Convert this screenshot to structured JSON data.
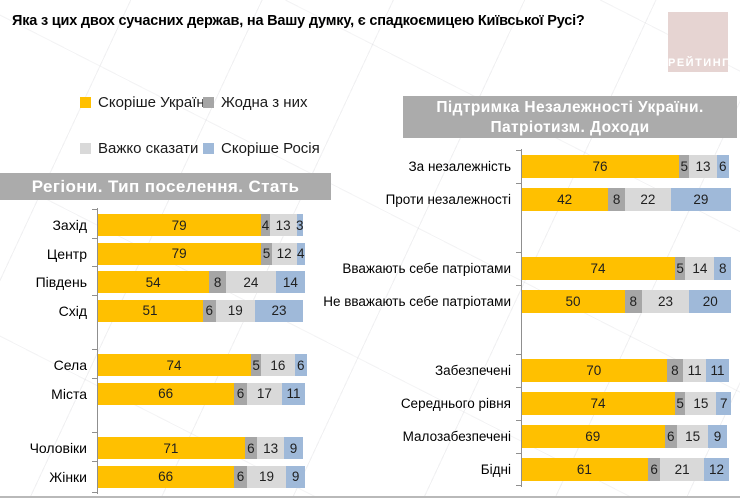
{
  "page": {
    "title": "Яка з цих двох сучасних держав, на Вашу думку, є спадкоємицею Київської Русі?"
  },
  "logo": {
    "text": "РЕЙТИНГ",
    "bg_color": "#e6d4d2"
  },
  "colors": {
    "ukraine": "#FFC000",
    "none_of_them": "#A6A6A6",
    "hard_to_say": "#D9D9D9",
    "russia": "#9FB9D9",
    "header_bg": "#ABABAB",
    "axis": "#8F8F8F"
  },
  "legend": [
    {
      "key": "ukraine",
      "label": "Скоріше Україна",
      "color": "#FFC000"
    },
    {
      "key": "none_of_them",
      "label": "Жодна з них",
      "color": "#A6A6A6"
    },
    {
      "key": "hard_to_say",
      "label": "Важко сказати",
      "color": "#D9D9D9"
    },
    {
      "key": "russia",
      "label": "Скоріше Росія",
      "color": "#9FB9D9"
    }
  ],
  "chart_data": [
    {
      "type": "bar",
      "orientation": "horizontal",
      "stacked": true,
      "xlim": [
        0,
        100
      ],
      "units": "percent",
      "title": "Регіони. Тип поселення. Стать",
      "series_names": [
        "Скоріше Україна",
        "Жодна з них",
        "Важко сказати",
        "Скоріше Росія"
      ],
      "series_keys": [
        "ukraine",
        "none_of_them",
        "hard_to_say",
        "russia"
      ],
      "series_colors": [
        "#FFC000",
        "#A6A6A6",
        "#D9D9D9",
        "#9FB9D9"
      ],
      "groups": [
        {
          "rows": [
            {
              "label": "Захід",
              "values": [
                79,
                4,
                13,
                3
              ]
            },
            {
              "label": "Центр",
              "values": [
                79,
                5,
                12,
                4
              ]
            },
            {
              "label": "Південь",
              "values": [
                54,
                8,
                24,
                14
              ]
            },
            {
              "label": "Схід",
              "values": [
                51,
                6,
                19,
                23
              ]
            }
          ]
        },
        {
          "rows": [
            {
              "label": "Села",
              "values": [
                74,
                5,
                16,
                6
              ]
            },
            {
              "label": "Міста",
              "values": [
                66,
                6,
                17,
                11
              ]
            }
          ]
        },
        {
          "rows": [
            {
              "label": "Чоловіки",
              "values": [
                71,
                6,
                13,
                9
              ]
            },
            {
              "label": "Жінки",
              "values": [
                66,
                6,
                19,
                9
              ]
            }
          ]
        }
      ]
    },
    {
      "type": "bar",
      "orientation": "horizontal",
      "stacked": true,
      "xlim": [
        0,
        100
      ],
      "units": "percent",
      "title": "Підтримка Незалежності України. Патріотизм. Доходи",
      "header_lines": [
        "Підтримка Незалежності України.",
        "Патріотизм. Доходи"
      ],
      "series_names": [
        "Скоріше Україна",
        "Жодна з них",
        "Важко сказати",
        "Скоріше Росія"
      ],
      "series_keys": [
        "ukraine",
        "none_of_them",
        "hard_to_say",
        "russia"
      ],
      "series_colors": [
        "#FFC000",
        "#A6A6A6",
        "#D9D9D9",
        "#9FB9D9"
      ],
      "groups": [
        {
          "rows": [
            {
              "label": "За незалежність",
              "values": [
                76,
                5,
                13,
                6
              ]
            },
            {
              "label": "Проти незалежності",
              "values": [
                42,
                8,
                22,
                29
              ]
            }
          ]
        },
        {
          "rows": [
            {
              "label": "Вважають себе патріотами",
              "values": [
                74,
                5,
                14,
                8
              ]
            },
            {
              "label": "Не вважають себе патріотами",
              "values": [
                50,
                8,
                23,
                20
              ]
            }
          ]
        },
        {
          "rows": [
            {
              "label": "Забезпечені",
              "values": [
                70,
                8,
                11,
                11
              ]
            },
            {
              "label": "Середнього рівня",
              "values": [
                74,
                5,
                15,
                7
              ]
            },
            {
              "label": "Малозабезпечені",
              "values": [
                69,
                6,
                15,
                9
              ]
            },
            {
              "label": "Бідні",
              "values": [
                61,
                6,
                21,
                12
              ]
            }
          ]
        }
      ]
    }
  ]
}
